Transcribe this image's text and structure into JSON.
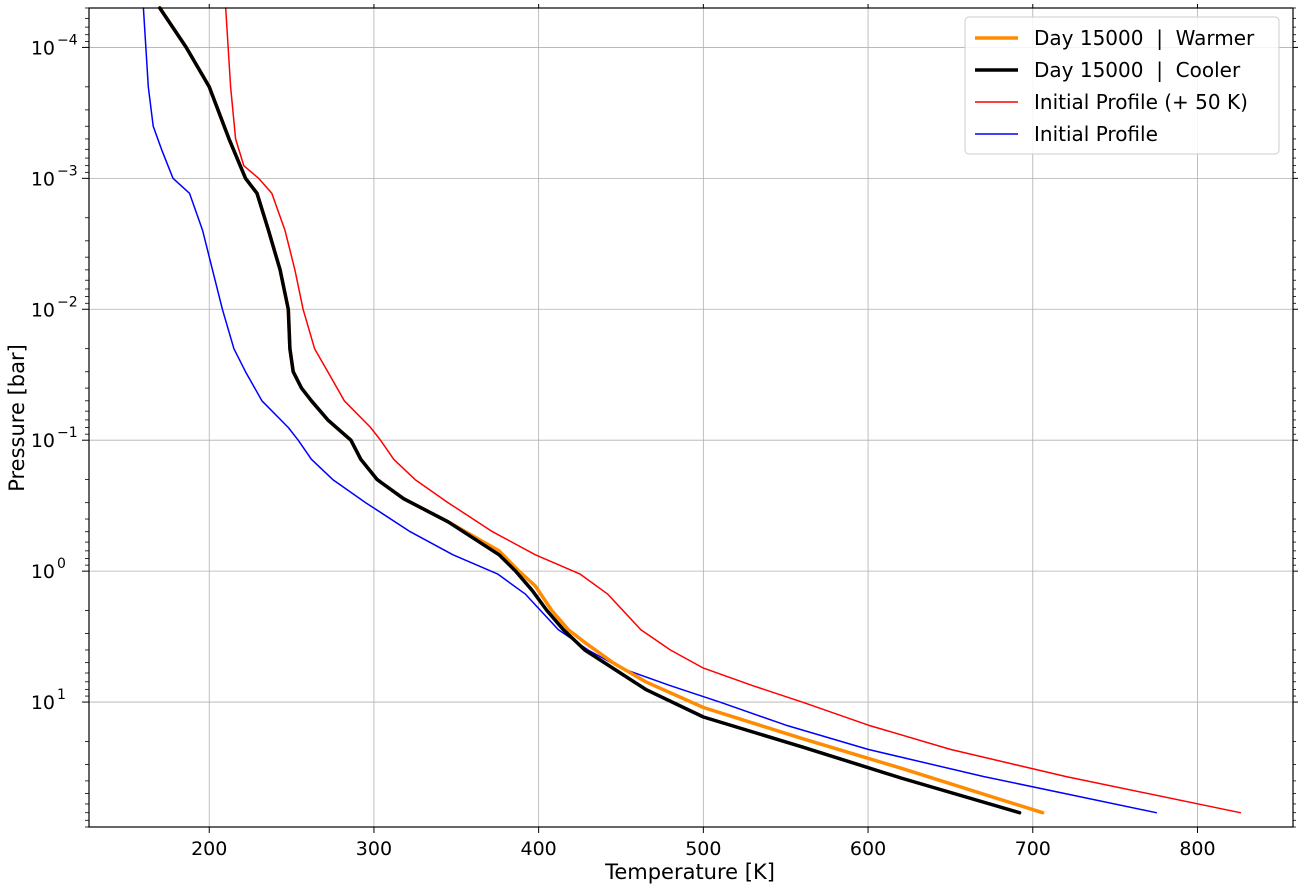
{
  "chart_data": {
    "type": "line",
    "title": "",
    "xlabel": "Temperature [K]",
    "ylabel": "Pressure [bar]",
    "xlim": [
      127,
      858
    ],
    "ylim": [
      90,
      5e-05
    ],
    "yscale": "log",
    "y_inverted": true,
    "grid": true,
    "legend_position": "top-right",
    "x_ticks": [
      200,
      300,
      400,
      500,
      600,
      700,
      800
    ],
    "x_tick_labels": [
      "200",
      "300",
      "400",
      "500",
      "600",
      "700",
      "800"
    ],
    "y_ticks": [
      0.0001,
      0.001,
      0.01,
      0.1,
      1,
      10
    ],
    "y_tick_labels": [
      {
        "base": "10",
        "exp": "−4"
      },
      {
        "base": "10",
        "exp": "−3"
      },
      {
        "base": "10",
        "exp": "−2"
      },
      {
        "base": "10",
        "exp": "−1"
      },
      {
        "base": "10",
        "exp": "0"
      },
      {
        "base": "10",
        "exp": "1"
      }
    ],
    "series": [
      {
        "name": "Day 15000  |  Warmer",
        "color": "#ff8c00",
        "width": 3.5,
        "points": [
          [
            170,
            5e-05
          ],
          [
            186,
            0.0001
          ],
          [
            200,
            0.0002
          ],
          [
            212,
            0.0005
          ],
          [
            222,
            0.001
          ],
          [
            229,
            0.0013
          ],
          [
            236,
            0.0025
          ],
          [
            243,
            0.005
          ],
          [
            248,
            0.01
          ],
          [
            249,
            0.02
          ],
          [
            251,
            0.03
          ],
          [
            256,
            0.04
          ],
          [
            262,
            0.05
          ],
          [
            272,
            0.07
          ],
          [
            286,
            0.1
          ],
          [
            292,
            0.14
          ],
          [
            302,
            0.2
          ],
          [
            318,
            0.28
          ],
          [
            345,
            0.42
          ],
          [
            376,
            0.7
          ],
          [
            388,
            1.0
          ],
          [
            398,
            1.3
          ],
          [
            408,
            2.0
          ],
          [
            418,
            2.8
          ],
          [
            428,
            3.5
          ],
          [
            445,
            5.0
          ],
          [
            465,
            7.0
          ],
          [
            500,
            11.0
          ],
          [
            560,
            19.0
          ],
          [
            620,
            32.0
          ],
          [
            706,
            70.0
          ]
        ]
      },
      {
        "name": "Day 15000  |  Cooler",
        "color": "#000000",
        "width": 3.5,
        "points": [
          [
            170,
            5e-05
          ],
          [
            186,
            0.0001
          ],
          [
            200,
            0.0002
          ],
          [
            212,
            0.0005
          ],
          [
            222,
            0.001
          ],
          [
            229,
            0.0013
          ],
          [
            236,
            0.0025
          ],
          [
            243,
            0.005
          ],
          [
            248,
            0.01
          ],
          [
            249,
            0.02
          ],
          [
            251,
            0.03
          ],
          [
            256,
            0.04
          ],
          [
            262,
            0.05
          ],
          [
            272,
            0.07
          ],
          [
            286,
            0.1
          ],
          [
            292,
            0.14
          ],
          [
            302,
            0.2
          ],
          [
            318,
            0.28
          ],
          [
            345,
            0.42
          ],
          [
            376,
            0.75
          ],
          [
            386,
            1.0
          ],
          [
            396,
            1.4
          ],
          [
            405,
            2.0
          ],
          [
            415,
            2.8
          ],
          [
            428,
            4.0
          ],
          [
            445,
            5.5
          ],
          [
            465,
            8.0
          ],
          [
            500,
            13.0
          ],
          [
            560,
            22.0
          ],
          [
            620,
            38.0
          ],
          [
            692,
            70.0
          ]
        ]
      },
      {
        "name": "Initial Profile (+ 50 K)",
        "color": "#ff0000",
        "width": 1.5,
        "points": [
          [
            210,
            5e-05
          ],
          [
            213,
            0.0002
          ],
          [
            216,
            0.0005
          ],
          [
            221,
            0.0008
          ],
          [
            230,
            0.001
          ],
          [
            238,
            0.0013
          ],
          [
            246,
            0.0025
          ],
          [
            252,
            0.005
          ],
          [
            257,
            0.01
          ],
          [
            264,
            0.02
          ],
          [
            272,
            0.03
          ],
          [
            282,
            0.05
          ],
          [
            298,
            0.08
          ],
          [
            304,
            0.1
          ],
          [
            312,
            0.14
          ],
          [
            325,
            0.2
          ],
          [
            345,
            0.3
          ],
          [
            372,
            0.5
          ],
          [
            398,
            0.75
          ],
          [
            425,
            1.05
          ],
          [
            442,
            1.5
          ],
          [
            462,
            2.8
          ],
          [
            480,
            4.0
          ],
          [
            500,
            5.5
          ],
          [
            530,
            7.5
          ],
          [
            560,
            10.0
          ],
          [
            600,
            15.0
          ],
          [
            650,
            23.0
          ],
          [
            720,
            37.0
          ],
          [
            826,
            70.0
          ]
        ]
      },
      {
        "name": "Initial Profile",
        "color": "#0000ff",
        "width": 1.5,
        "points": [
          [
            160,
            5e-05
          ],
          [
            163,
            0.0002
          ],
          [
            166,
            0.0004
          ],
          [
            171,
            0.0006
          ],
          [
            178,
            0.001
          ],
          [
            188,
            0.0013
          ],
          [
            196,
            0.0025
          ],
          [
            202,
            0.005
          ],
          [
            208,
            0.01
          ],
          [
            215,
            0.02
          ],
          [
            222,
            0.03
          ],
          [
            232,
            0.05
          ],
          [
            248,
            0.08
          ],
          [
            254,
            0.1
          ],
          [
            262,
            0.14
          ],
          [
            275,
            0.2
          ],
          [
            295,
            0.3
          ],
          [
            322,
            0.5
          ],
          [
            348,
            0.75
          ],
          [
            375,
            1.05
          ],
          [
            392,
            1.5
          ],
          [
            412,
            2.8
          ],
          [
            430,
            4.0
          ],
          [
            450,
            5.5
          ],
          [
            480,
            7.5
          ],
          [
            510,
            10.0
          ],
          [
            550,
            15.0
          ],
          [
            600,
            23.0
          ],
          [
            670,
            37.0
          ],
          [
            775,
            70.0
          ]
        ]
      }
    ]
  }
}
